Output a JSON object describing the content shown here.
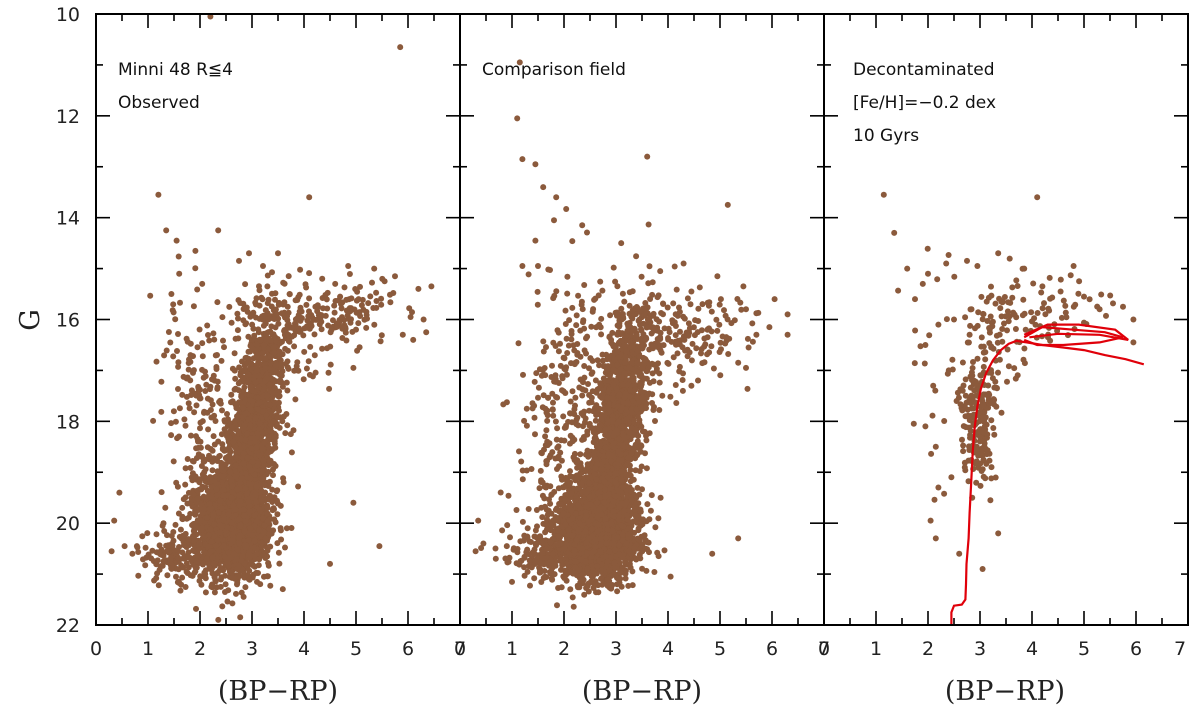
{
  "chart_data": {
    "type": "scatter",
    "point_color": "#8b5a3c",
    "isochrone_color": "#e0000a",
    "ylabel": "G",
    "ylim": [
      10,
      22
    ],
    "y_ticks": [
      10,
      12,
      14,
      16,
      18,
      20,
      22
    ],
    "y_inverted": true,
    "panels": [
      {
        "id": "observed",
        "xlabel": "(BP−RP)",
        "xlim": [
          0,
          7
        ],
        "x_ticks": [
          0,
          1,
          2,
          3,
          4,
          5,
          6,
          7
        ],
        "annotations": [
          "Minni 48  R≦4",
          "Observed"
        ],
        "sparse_points": [
          [
            2.2,
            10.05
          ],
          [
            5.85,
            10.65
          ],
          [
            1.2,
            13.55
          ],
          [
            4.1,
            13.6
          ],
          [
            1.35,
            14.25
          ],
          [
            1.55,
            14.45
          ],
          [
            2.35,
            14.25
          ],
          [
            2.75,
            14.85
          ],
          [
            3.5,
            14.7
          ],
          [
            4.35,
            15.2
          ],
          [
            4.6,
            15.3
          ],
          [
            4.85,
            14.95
          ],
          [
            5.35,
            15.0
          ],
          [
            5.55,
            15.25
          ],
          [
            5.75,
            15.15
          ],
          [
            6.2,
            15.4
          ],
          [
            6.45,
            15.35
          ],
          [
            6.05,
            15.95
          ],
          [
            6.3,
            16.0
          ],
          [
            6.35,
            16.25
          ],
          [
            5.9,
            16.3
          ],
          [
            6.1,
            16.4
          ],
          [
            5.05,
            15.6
          ],
          [
            5.2,
            15.85
          ],
          [
            4.95,
            16.95
          ],
          [
            0.45,
            19.4
          ],
          [
            0.35,
            19.95
          ],
          [
            0.3,
            20.55
          ],
          [
            0.55,
            20.45
          ],
          [
            0.7,
            20.6
          ],
          [
            4.95,
            19.6
          ],
          [
            5.45,
            20.45
          ],
          [
            4.5,
            20.8
          ],
          [
            1.6,
            15.1
          ],
          [
            1.45,
            15.5
          ]
        ],
        "density": {
          "seed": 11,
          "components": [
            {
              "n": 2400,
              "cx": 2.65,
              "sx": 0.33,
              "cy": 20.0,
              "sy": 0.45,
              "shift": 0.0
            },
            {
              "n": 1600,
              "cx": 3.0,
              "sx": 0.22,
              "cy": 18.4,
              "sy": 1.0,
              "shift": 0.15
            },
            {
              "n": 260,
              "cx": 2.1,
              "sx": 0.4,
              "cy": 18.2,
              "sy": 1.4,
              "shift": 0.0
            },
            {
              "n": 170,
              "cx": 4.4,
              "sx": 0.8,
              "cy": 15.9,
              "sy": 0.3,
              "shift": 0.2
            },
            {
              "n": 160,
              "cx": 1.65,
              "sx": 0.4,
              "cy": 20.6,
              "sy": 0.3,
              "shift": 0.0
            },
            {
              "n": 140,
              "cx": 3.45,
              "sx": 0.45,
              "cy": 16.5,
              "sy": 0.6,
              "shift": 0.0
            }
          ]
        }
      },
      {
        "id": "comparison",
        "xlabel": "(BP−RP)",
        "xlim": [
          0,
          7
        ],
        "x_ticks": [
          0,
          1,
          2,
          3,
          4,
          5,
          6,
          7
        ],
        "annotations": [
          "Comparison field"
        ],
        "sparse_points": [
          [
            1.15,
            10.95
          ],
          [
            1.1,
            12.05
          ],
          [
            1.2,
            12.85
          ],
          [
            1.45,
            12.95
          ],
          [
            1.6,
            13.4
          ],
          [
            1.85,
            13.6
          ],
          [
            2.35,
            14.15
          ],
          [
            3.1,
            14.5
          ],
          [
            3.6,
            12.8
          ],
          [
            5.15,
            13.75
          ],
          [
            1.45,
            14.45
          ],
          [
            1.5,
            14.95
          ],
          [
            3.85,
            15.05
          ],
          [
            4.3,
            14.9
          ],
          [
            4.45,
            15.45
          ],
          [
            4.95,
            15.15
          ],
          [
            5.45,
            15.35
          ],
          [
            5.5,
            15.8
          ],
          [
            6.05,
            15.6
          ],
          [
            6.3,
            15.9
          ],
          [
            6.3,
            16.3
          ],
          [
            5.95,
            16.15
          ],
          [
            5.7,
            16.3
          ],
          [
            5.55,
            16.55
          ],
          [
            5.5,
            16.95
          ],
          [
            5.35,
            16.85
          ],
          [
            4.45,
            17.3
          ],
          [
            0.35,
            19.95
          ],
          [
            0.45,
            20.4
          ],
          [
            0.3,
            20.55
          ],
          [
            0.9,
            20.45
          ],
          [
            5.35,
            20.3
          ],
          [
            4.85,
            20.6
          ],
          [
            4.05,
            21.05
          ],
          [
            1.2,
            14.95
          ]
        ],
        "density": {
          "seed": 23,
          "components": [
            {
              "n": 2300,
              "cx": 2.65,
              "sx": 0.36,
              "cy": 20.1,
              "sy": 0.45,
              "shift": 0.0
            },
            {
              "n": 1500,
              "cx": 3.0,
              "sx": 0.22,
              "cy": 18.3,
              "sy": 1.05,
              "shift": 0.15
            },
            {
              "n": 320,
              "cx": 2.1,
              "sx": 0.45,
              "cy": 18.0,
              "sy": 1.5,
              "shift": 0.0
            },
            {
              "n": 160,
              "cx": 4.3,
              "sx": 0.75,
              "cy": 16.3,
              "sy": 0.45,
              "shift": 0.2
            },
            {
              "n": 200,
              "cx": 1.7,
              "sx": 0.45,
              "cy": 20.6,
              "sy": 0.3,
              "shift": 0.0
            },
            {
              "n": 150,
              "cx": 3.4,
              "sx": 0.45,
              "cy": 16.6,
              "sy": 0.6,
              "shift": 0.0
            }
          ]
        }
      },
      {
        "id": "decontaminated",
        "xlabel": "(BP−RP)",
        "xlim": [
          0,
          7
        ],
        "x_ticks": [
          0,
          1,
          2,
          3,
          4,
          5,
          6,
          7
        ],
        "annotations": [
          "Decontaminated",
          "[Fe/H]=−0.2 dex",
          "10 Gyrs"
        ],
        "sparse_points": [
          [
            1.15,
            13.55
          ],
          [
            1.35,
            14.3
          ],
          [
            4.1,
            13.6
          ],
          [
            1.6,
            15.0
          ],
          [
            1.9,
            15.3
          ],
          [
            1.75,
            15.6
          ],
          [
            2.0,
            15.1
          ],
          [
            2.35,
            14.9
          ],
          [
            2.2,
            16.1
          ],
          [
            1.95,
            16.5
          ],
          [
            2.1,
            17.3
          ],
          [
            1.95,
            18.1
          ],
          [
            2.15,
            18.5
          ],
          [
            2.2,
            19.3
          ],
          [
            2.05,
            19.95
          ],
          [
            2.15,
            20.3
          ],
          [
            2.45,
            19.1
          ],
          [
            2.75,
            14.85
          ],
          [
            2.95,
            14.95
          ],
          [
            3.35,
            14.7
          ],
          [
            3.85,
            15.0
          ],
          [
            4.2,
            15.35
          ],
          [
            4.55,
            15.45
          ],
          [
            4.8,
            14.95
          ],
          [
            5.0,
            15.55
          ],
          [
            5.3,
            15.8
          ],
          [
            5.75,
            15.75
          ],
          [
            5.95,
            16.0
          ],
          [
            5.95,
            16.45
          ],
          [
            3.35,
            20.2
          ],
          [
            3.2,
            19.55
          ],
          [
            2.85,
            19.5
          ],
          [
            2.6,
            20.6
          ],
          [
            3.05,
            20.9
          ],
          [
            2.5,
            16.0
          ],
          [
            2.8,
            16.3
          ],
          [
            2.4,
            17.0
          ],
          [
            2.55,
            17.6
          ]
        ],
        "density": {
          "seed": 37,
          "components": [
            {
              "n": 190,
              "cx": 3.0,
              "sx": 0.17,
              "cy": 17.95,
              "sy": 0.55,
              "shift": 0.0
            },
            {
              "n": 70,
              "cx": 3.45,
              "sx": 0.3,
              "cy": 16.2,
              "sy": 0.45,
              "shift": 0.0
            },
            {
              "n": 55,
              "cx": 4.5,
              "sx": 0.6,
              "cy": 15.8,
              "sy": 0.35,
              "shift": 0.0
            },
            {
              "n": 40,
              "cx": 2.45,
              "sx": 0.35,
              "cy": 17.0,
              "sy": 1.1,
              "shift": 0.0
            }
          ]
        },
        "isochrone": [
          [
            2.45,
            22.0
          ],
          [
            2.45,
            21.75
          ],
          [
            2.5,
            21.62
          ],
          [
            2.65,
            21.6
          ],
          [
            2.72,
            21.5
          ],
          [
            2.73,
            21.2
          ],
          [
            2.74,
            20.8
          ],
          [
            2.78,
            20.3
          ],
          [
            2.8,
            19.8
          ],
          [
            2.83,
            19.2
          ],
          [
            2.86,
            18.6
          ],
          [
            2.9,
            18.1
          ],
          [
            2.95,
            17.7
          ],
          [
            3.02,
            17.35
          ],
          [
            3.12,
            17.05
          ],
          [
            3.25,
            16.8
          ],
          [
            3.4,
            16.6
          ],
          [
            3.55,
            16.48
          ],
          [
            3.7,
            16.42
          ],
          [
            3.9,
            16.45
          ],
          [
            4.2,
            16.5
          ],
          [
            4.6,
            16.55
          ],
          [
            5.0,
            16.6
          ],
          [
            5.4,
            16.7
          ],
          [
            5.8,
            16.78
          ],
          [
            6.15,
            16.88
          ]
        ],
        "isochrone_loops": [
          [
            [
              3.85,
              16.35
            ],
            [
              4.2,
              16.15
            ],
            [
              4.8,
              16.2
            ],
            [
              5.4,
              16.25
            ],
            [
              5.75,
              16.35
            ],
            [
              5.3,
              16.45
            ],
            [
              4.6,
              16.5
            ],
            [
              4.1,
              16.5
            ],
            [
              3.85,
              16.4
            ]
          ],
          [
            [
              3.85,
              16.3
            ],
            [
              4.3,
              16.1
            ],
            [
              4.9,
              16.1
            ],
            [
              5.6,
              16.2
            ],
            [
              5.85,
              16.4
            ],
            [
              5.3,
              16.3
            ],
            [
              4.5,
              16.28
            ],
            [
              3.95,
              16.35
            ]
          ]
        ]
      }
    ]
  }
}
